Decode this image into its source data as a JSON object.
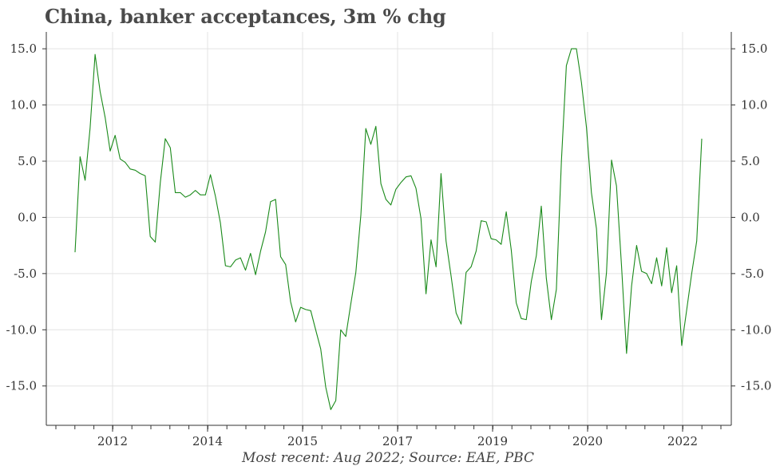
{
  "title": "China, banker acceptances, 3m % chg",
  "source": "Most recent: Aug 2022; Source: EAE, PBC",
  "colors": {
    "line": "#1a8a1a",
    "grid": "#e3e3e3",
    "axis": "#333333"
  },
  "chart_data": {
    "type": "line",
    "ylim": [
      -18.5,
      16.5
    ],
    "y_ticks": [
      15,
      10,
      5,
      0,
      -5,
      -10,
      -15
    ],
    "y_tick_labels": [
      "15.0",
      "10.0",
      "5.0",
      "0.0",
      "-5.0",
      "-10.0",
      "-15.0"
    ],
    "y_axes": "left and right",
    "grid": true,
    "x_tick_labels": [
      "2012",
      "2014",
      "2015",
      "2017",
      "2019",
      "2020",
      "2022"
    ],
    "values": [
      -3.1,
      5.4,
      3.3,
      7.9,
      14.5,
      11.2,
      8.9,
      5.9,
      7.3,
      5.2,
      4.9,
      4.3,
      4.2,
      3.9,
      3.7,
      -1.7,
      -2.2,
      3.1,
      7.0,
      6.2,
      2.2,
      2.2,
      1.8,
      2.0,
      2.4,
      2.0,
      2.0,
      3.8,
      1.9,
      -0.5,
      -4.3,
      -4.4,
      -3.8,
      -3.6,
      -4.7,
      -3.2,
      -5.1,
      -3.0,
      -1.3,
      1.4,
      1.6,
      -3.5,
      -4.2,
      -7.5,
      -9.3,
      -8.0,
      -8.2,
      -8.3,
      -10.0,
      -11.7,
      -15.1,
      -17.1,
      -16.3,
      -10.0,
      -10.6,
      -7.7,
      -4.9,
      0.2,
      7.9,
      6.5,
      8.1,
      3.0,
      1.6,
      1.1,
      2.5,
      3.1,
      3.6,
      3.7,
      2.6,
      -0.1,
      -6.8,
      -2.0,
      -4.4,
      3.9,
      -2.1,
      -5.2,
      -8.5,
      -9.5,
      -4.9,
      -4.4,
      -3.0,
      -0.3,
      -0.4,
      -1.9,
      -2.0,
      -2.4,
      0.5,
      -2.9,
      -7.6,
      -9.0,
      -9.1,
      -5.7,
      -3.4,
      1.0,
      -5.4,
      -9.1,
      -6.4,
      5.0,
      13.5,
      15.0,
      15.0,
      12.0,
      8.0,
      2.2,
      -1.0,
      -9.1,
      -4.9,
      5.1,
      2.8,
      -4.3,
      -12.1,
      -6.1,
      -2.5,
      -4.8,
      -5.0,
      -5.9,
      -3.6,
      -6.1,
      -2.7,
      -6.7,
      -4.3,
      -11.4,
      -8.2,
      -5.0,
      -2.1,
      7.0
    ]
  }
}
